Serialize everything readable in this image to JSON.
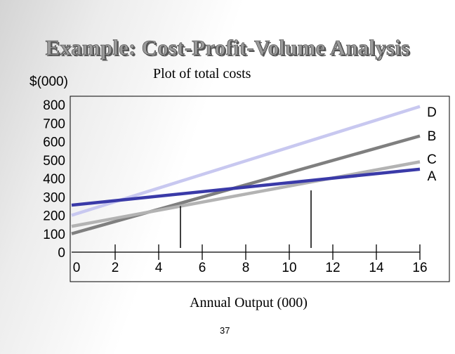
{
  "slide": {
    "title": "Example: Cost-Profit-Volume Analysis",
    "page_number": "37"
  },
  "chart_data": {
    "type": "line",
    "title": "Plot of total costs",
    "ylabel": "$(000)",
    "xlabel": "Annual Output (000)",
    "xlim": [
      0,
      16
    ],
    "ylim": [
      0,
      800
    ],
    "x_ticks": [
      0,
      2,
      4,
      6,
      8,
      10,
      12,
      14,
      16
    ],
    "y_ticks": [
      0,
      100,
      200,
      300,
      400,
      500,
      600,
      700,
      800
    ],
    "grid": false,
    "legend": "none",
    "series": [
      {
        "name": "D",
        "color": "#c8c8f0",
        "x": [
          0,
          16
        ],
        "values": [
          200,
          790
        ]
      },
      {
        "name": "B",
        "color": "#7f7f7f",
        "x": [
          0,
          16
        ],
        "values": [
          100,
          630
        ]
      },
      {
        "name": "C",
        "color": "#b3b3b3",
        "x": [
          0,
          16
        ],
        "values": [
          140,
          490
        ]
      },
      {
        "name": "A",
        "color": "#3a3aa8",
        "x": [
          0,
          16
        ],
        "values": [
          255,
          450
        ]
      }
    ],
    "markers": [
      {
        "x": 5,
        "from": 0,
        "to": 250
      },
      {
        "x": 11,
        "from": 0,
        "to": 335
      }
    ]
  }
}
